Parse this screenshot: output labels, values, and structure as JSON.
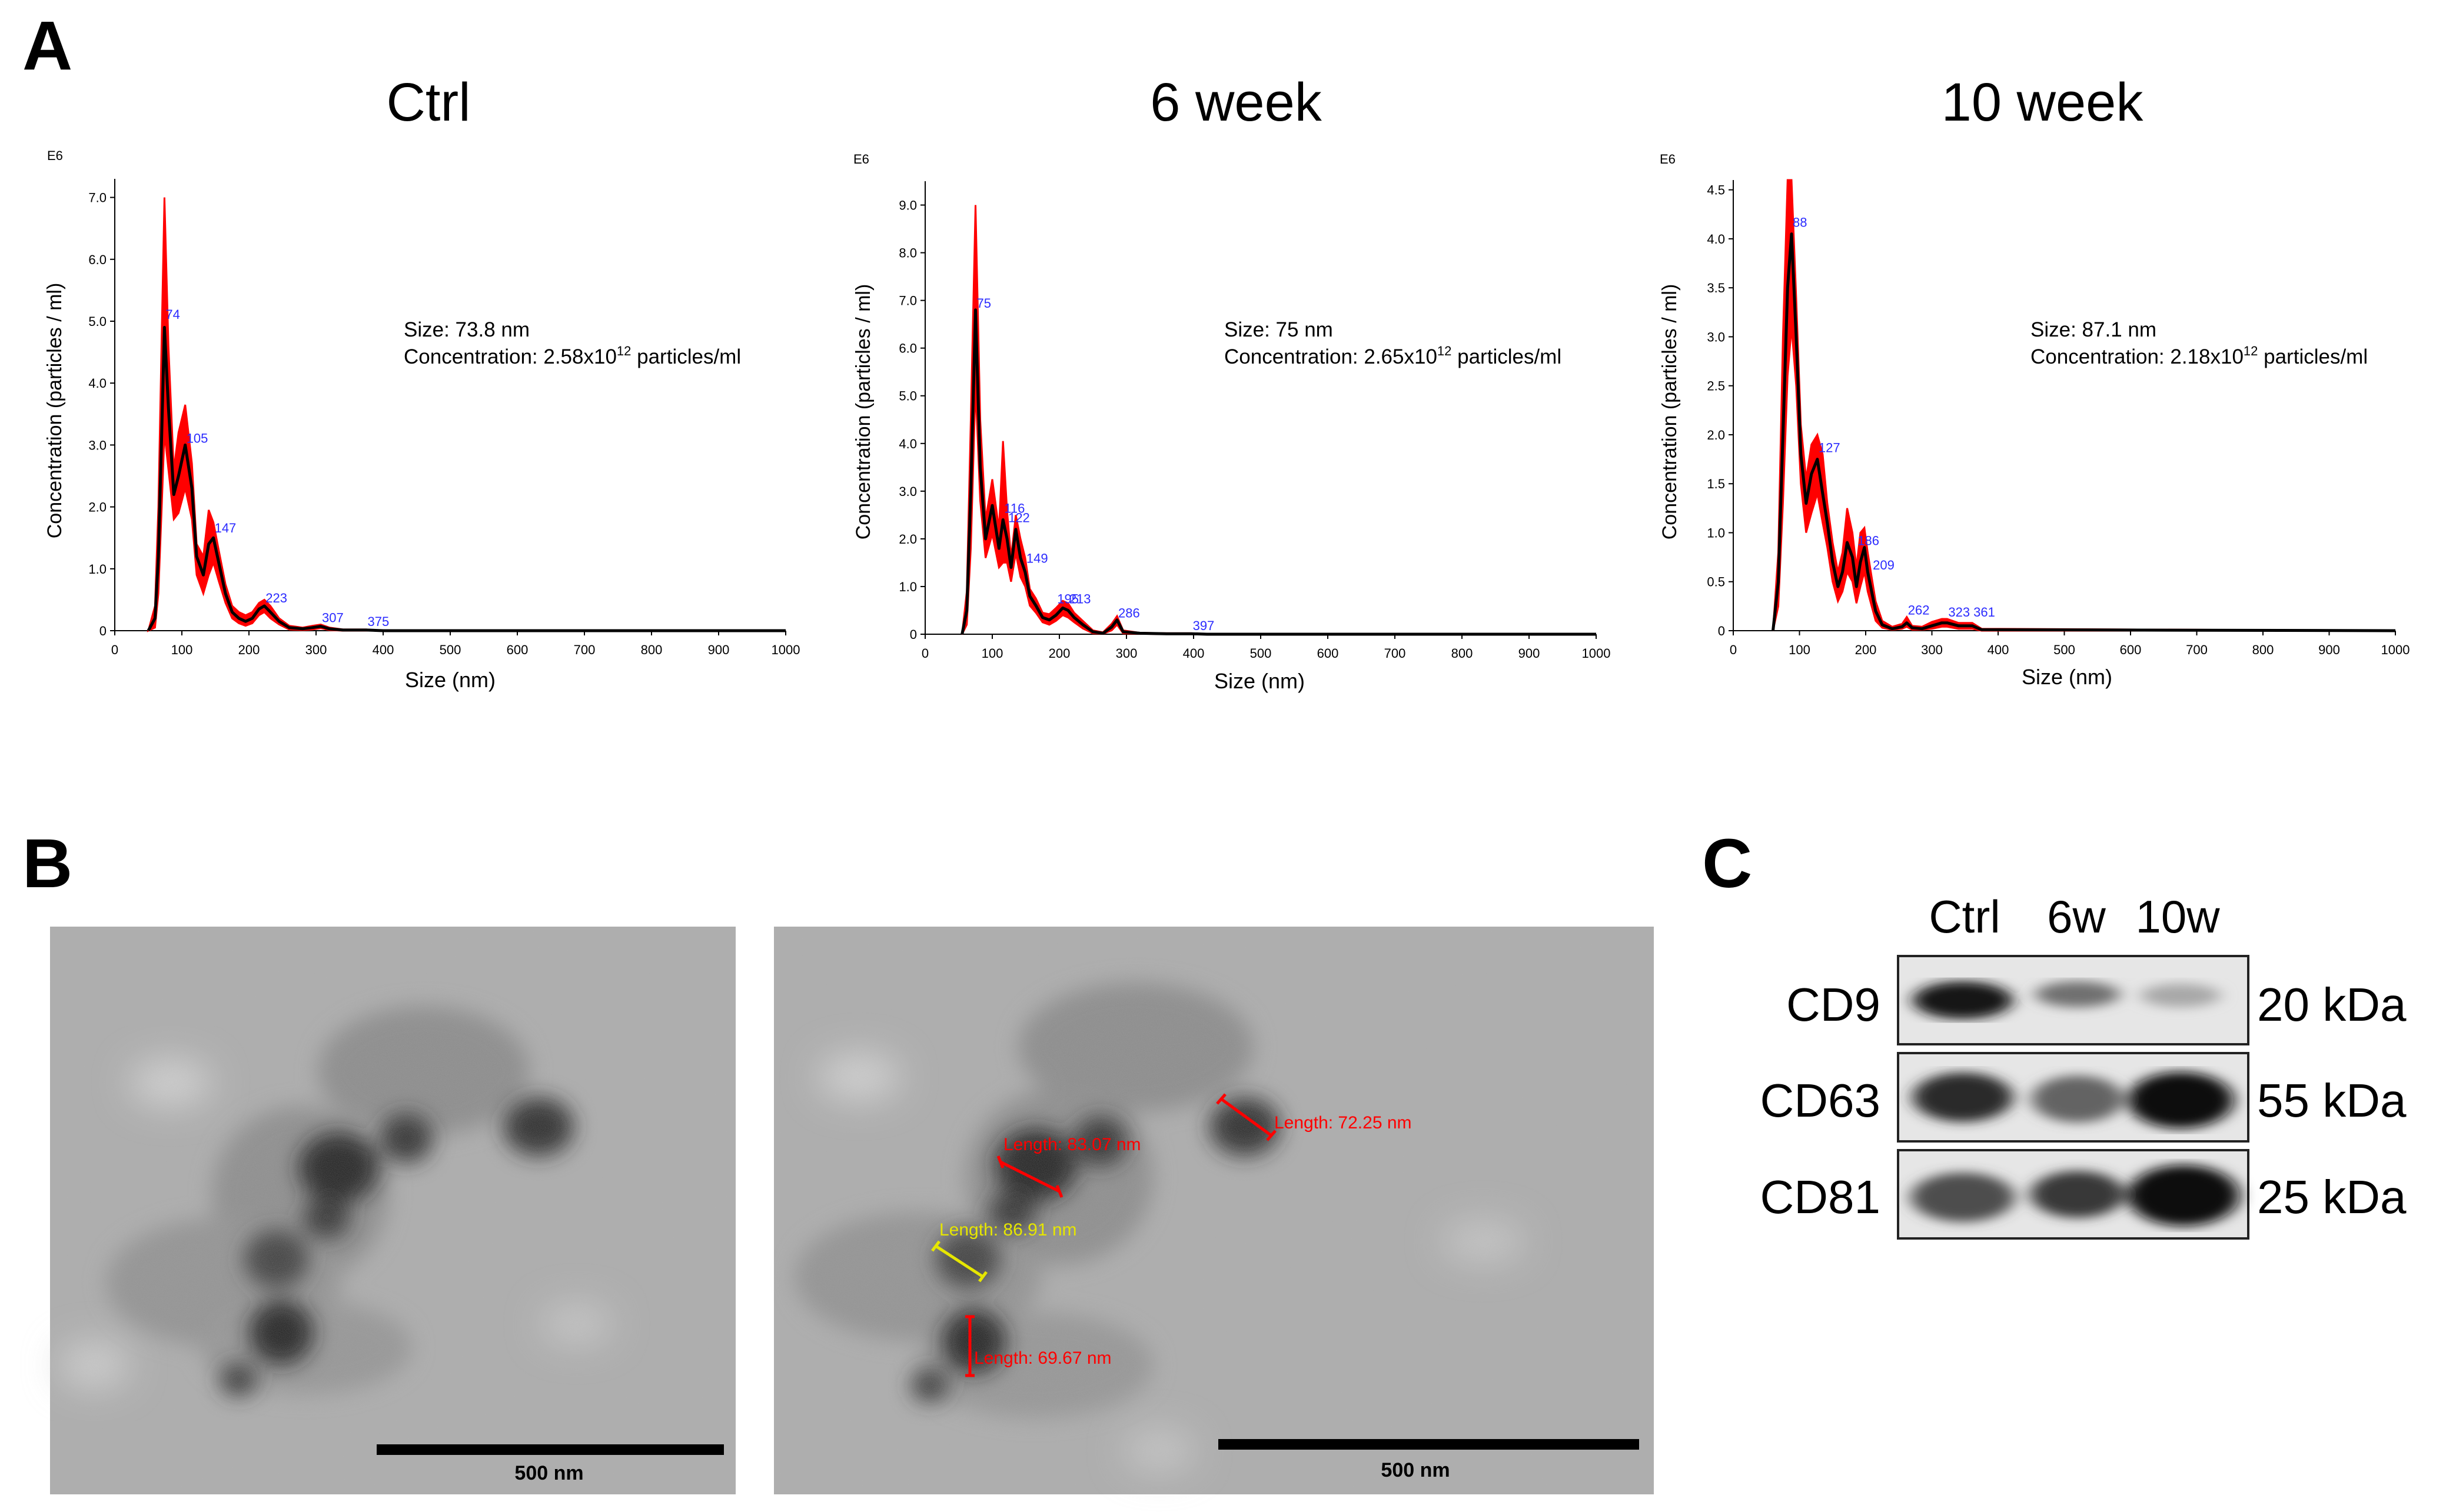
{
  "panels": {
    "a": "A",
    "b": "B",
    "c": "C"
  },
  "axis_common": {
    "e6": "E6",
    "ylabel": "Concentration (particles / ml)",
    "xlabel": "Size (nm)",
    "xticks": [
      "0",
      "100",
      "200",
      "300",
      "400",
      "500",
      "600",
      "700",
      "800",
      "900",
      "1000"
    ]
  },
  "chart_data": [
    {
      "type": "line",
      "title": "Ctrl",
      "xlabel": "Size (nm)",
      "ylabel": "Concentration (particles / ml)",
      "y_multiplier": "E6",
      "xlim": [
        0,
        1000
      ],
      "ylim": [
        0,
        7.3
      ],
      "yticks": [
        "0",
        "1.0",
        "2.0",
        "3.0",
        "4.0",
        "5.0",
        "6.0",
        "7.0"
      ],
      "annotation_size": "Size: 73.8 nm",
      "annotation_conc_pre": "Concentration: 2.58x10",
      "annotation_conc_exp": "12",
      "annotation_conc_post": " particles/ml",
      "series": [
        {
          "name": "mean",
          "color": "#000000",
          "x": [
            50,
            60,
            65,
            70,
            74,
            80,
            88,
            95,
            105,
            115,
            122,
            132,
            140,
            147,
            155,
            165,
            175,
            185,
            195,
            205,
            215,
            223,
            232,
            245,
            260,
            280,
            295,
            307,
            320,
            340,
            360,
            375,
            400,
            1000
          ],
          "y": [
            0,
            0.2,
            1.2,
            3.2,
            4.9,
            3.6,
            2.2,
            2.5,
            3.0,
            2.3,
            1.2,
            0.9,
            1.4,
            1.5,
            1.1,
            0.6,
            0.3,
            0.2,
            0.15,
            0.2,
            0.35,
            0.4,
            0.3,
            0.15,
            0.05,
            0.03,
            0.05,
            0.07,
            0.03,
            0.01,
            0.01,
            0.01,
            0,
            0
          ]
        },
        {
          "name": "upper",
          "color": "#ff0000",
          "x": [
            50,
            60,
            65,
            70,
            74,
            80,
            88,
            95,
            105,
            115,
            122,
            132,
            140,
            147,
            155,
            165,
            175,
            185,
            195,
            205,
            215,
            223,
            232,
            245,
            260,
            280,
            295,
            307,
            320,
            340,
            360,
            375,
            400,
            1000
          ],
          "y": [
            0,
            0.4,
            2.0,
            4.8,
            7.0,
            4.6,
            2.6,
            3.2,
            3.65,
            2.7,
            1.4,
            1.2,
            1.95,
            1.75,
            1.3,
            0.75,
            0.4,
            0.3,
            0.25,
            0.3,
            0.45,
            0.5,
            0.4,
            0.2,
            0.08,
            0.05,
            0.08,
            0.1,
            0.05,
            0.02,
            0.02,
            0.02,
            0,
            0
          ]
        },
        {
          "name": "lower",
          "color": "#ff0000",
          "x": [
            50,
            60,
            65,
            70,
            74,
            80,
            88,
            95,
            105,
            115,
            122,
            132,
            140,
            147,
            155,
            165,
            175,
            185,
            195,
            205,
            215,
            223,
            232,
            245,
            260,
            280,
            295,
            307,
            320,
            340,
            360,
            375,
            400,
            1000
          ],
          "y": [
            0,
            0.05,
            0.6,
            2.0,
            3.2,
            2.6,
            1.8,
            1.9,
            2.3,
            1.8,
            0.9,
            0.6,
            0.9,
            1.1,
            0.8,
            0.45,
            0.2,
            0.12,
            0.08,
            0.12,
            0.25,
            0.3,
            0.2,
            0.1,
            0.02,
            0.01,
            0.02,
            0.04,
            0.01,
            0,
            0,
            0,
            0,
            0
          ]
        }
      ],
      "peak_labels": [
        {
          "x": 74,
          "y": 5.0,
          "text": "74"
        },
        {
          "x": 105,
          "y": 3.0,
          "text": "105"
        },
        {
          "x": 147,
          "y": 1.55,
          "text": "147"
        },
        {
          "x": 223,
          "y": 0.42,
          "text": "223"
        },
        {
          "x": 307,
          "y": 0.1,
          "text": "307"
        },
        {
          "x": 375,
          "y": 0.04,
          "text": "375"
        }
      ]
    },
    {
      "type": "line",
      "title": "6 week",
      "xlabel": "Size (nm)",
      "ylabel": "Concentration (particles / ml)",
      "y_multiplier": "E6",
      "xlim": [
        0,
        1000
      ],
      "ylim": [
        0,
        9.5
      ],
      "yticks": [
        "0",
        "1.0",
        "2.0",
        "3.0",
        "4.0",
        "5.0",
        "6.0",
        "7.0",
        "8.0",
        "9.0"
      ],
      "annotation_size": "Size: 75 nm",
      "annotation_conc_pre": "Concentration: 2.65x10",
      "annotation_conc_exp": "12",
      "annotation_conc_post": " particles/ml",
      "series": [
        {
          "name": "mean",
          "color": "#000000",
          "x": [
            55,
            62,
            68,
            75,
            82,
            90,
            100,
            110,
            116,
            122,
            128,
            135,
            142,
            149,
            156,
            165,
            175,
            185,
            195,
            205,
            213,
            222,
            235,
            250,
            265,
            278,
            286,
            295,
            320,
            360,
            397,
            420,
            1000
          ],
          "y": [
            0,
            0.5,
            3.0,
            6.8,
            3.5,
            2.0,
            2.7,
            1.8,
            2.4,
            2.0,
            1.4,
            2.2,
            1.6,
            1.3,
            0.8,
            0.6,
            0.35,
            0.3,
            0.4,
            0.55,
            0.5,
            0.35,
            0.2,
            0.05,
            0.02,
            0.15,
            0.3,
            0.05,
            0.02,
            0.01,
            0.01,
            0,
            0
          ]
        },
        {
          "name": "upper",
          "color": "#ff0000",
          "x": [
            55,
            62,
            68,
            75,
            82,
            90,
            100,
            110,
            116,
            122,
            128,
            135,
            142,
            149,
            156,
            165,
            175,
            185,
            195,
            205,
            213,
            222,
            235,
            250,
            265,
            278,
            286,
            295,
            320,
            360,
            397,
            420,
            1000
          ],
          "y": [
            0,
            0.9,
            4.5,
            9.0,
            4.5,
            2.4,
            3.25,
            2.2,
            4.05,
            2.6,
            1.6,
            2.5,
            2.0,
            1.6,
            0.95,
            0.75,
            0.45,
            0.42,
            0.55,
            0.7,
            0.65,
            0.45,
            0.28,
            0.08,
            0.04,
            0.22,
            0.38,
            0.08,
            0.03,
            0.02,
            0.02,
            0,
            0
          ]
        },
        {
          "name": "lower",
          "color": "#ff0000",
          "x": [
            55,
            62,
            68,
            75,
            82,
            90,
            100,
            110,
            116,
            122,
            128,
            135,
            142,
            149,
            156,
            165,
            175,
            185,
            195,
            205,
            213,
            222,
            235,
            250,
            265,
            278,
            286,
            295,
            320,
            360,
            397,
            420,
            1000
          ],
          "y": [
            0,
            0.2,
            1.8,
            5.2,
            2.8,
            1.6,
            2.1,
            1.4,
            1.5,
            1.5,
            1.1,
            1.7,
            1.2,
            1.0,
            0.6,
            0.45,
            0.25,
            0.2,
            0.28,
            0.4,
            0.35,
            0.25,
            0.12,
            0.02,
            0.01,
            0.08,
            0.2,
            0.02,
            0.01,
            0,
            0,
            0,
            0
          ]
        }
      ],
      "peak_labels": [
        {
          "x": 75,
          "y": 6.8,
          "text": "75"
        },
        {
          "x": 116,
          "y": 2.5,
          "text": "116"
        },
        {
          "x": 122,
          "y": 2.3,
          "text": "122"
        },
        {
          "x": 149,
          "y": 1.45,
          "text": "149"
        },
        {
          "x": 195,
          "y": 0.6,
          "text": "195"
        },
        {
          "x": 213,
          "y": 0.6,
          "text": "213"
        },
        {
          "x": 286,
          "y": 0.3,
          "text": "286"
        },
        {
          "x": 397,
          "y": 0.04,
          "text": "397"
        }
      ]
    },
    {
      "type": "line",
      "title": "10 week",
      "xlabel": "Size (nm)",
      "ylabel": "Concentration (particles / ml)",
      "y_multiplier": "E6",
      "xlim": [
        0,
        1000
      ],
      "ylim": [
        0,
        4.6
      ],
      "yticks": [
        "0",
        "0.5",
        "1.0",
        "1.5",
        "2.0",
        "2.5",
        "3.0",
        "3.5",
        "4.0",
        "4.5"
      ],
      "annotation_size": "Size: 87.1 nm",
      "annotation_conc_pre": "Concentration: 2.18x10",
      "annotation_conc_exp": "12",
      "annotation_conc_post": " particles/ml",
      "series": [
        {
          "name": "mean",
          "color": "#000000",
          "x": [
            60,
            68,
            75,
            82,
            88,
            95,
            102,
            110,
            118,
            127,
            135,
            142,
            150,
            158,
            165,
            172,
            180,
            186,
            192,
            198,
            203,
            209,
            215,
            225,
            240,
            255,
            262,
            270,
            285,
            300,
            315,
            323,
            340,
            361,
            375,
            1000
          ],
          "y": [
            0,
            0.5,
            2.0,
            3.5,
            4.05,
            3.0,
            1.8,
            1.3,
            1.6,
            1.75,
            1.4,
            1.1,
            0.7,
            0.45,
            0.6,
            0.9,
            0.75,
            0.45,
            0.7,
            0.85,
            0.6,
            0.4,
            0.2,
            0.06,
            0.02,
            0.04,
            0.08,
            0.03,
            0.02,
            0.05,
            0.08,
            0.08,
            0.05,
            0.05,
            0.01,
            0
          ]
        },
        {
          "name": "upper",
          "color": "#ff0000",
          "x": [
            60,
            68,
            75,
            82,
            88,
            95,
            102,
            110,
            118,
            127,
            135,
            142,
            150,
            158,
            165,
            172,
            180,
            186,
            192,
            198,
            203,
            209,
            215,
            225,
            240,
            255,
            262,
            270,
            285,
            300,
            315,
            323,
            340,
            361,
            375,
            1000
          ],
          "y": [
            0,
            0.8,
            3.0,
            4.6,
            4.6,
            3.4,
            2.1,
            1.55,
            1.9,
            2.0,
            1.8,
            1.3,
            0.9,
            0.6,
            0.8,
            1.25,
            1.0,
            0.65,
            1.0,
            1.05,
            0.8,
            0.55,
            0.3,
            0.1,
            0.04,
            0.07,
            0.14,
            0.05,
            0.04,
            0.09,
            0.12,
            0.12,
            0.08,
            0.08,
            0.02,
            0
          ]
        },
        {
          "name": "lower",
          "color": "#ff0000",
          "x": [
            60,
            68,
            75,
            82,
            88,
            95,
            102,
            110,
            118,
            127,
            135,
            142,
            150,
            158,
            165,
            172,
            180,
            186,
            192,
            198,
            203,
            209,
            215,
            225,
            240,
            255,
            262,
            270,
            285,
            300,
            315,
            323,
            340,
            361,
            375,
            1000
          ],
          "y": [
            0,
            0.25,
            1.3,
            2.6,
            3.1,
            2.5,
            1.5,
            1.0,
            1.2,
            1.4,
            1.1,
            0.85,
            0.5,
            0.3,
            0.4,
            0.6,
            0.5,
            0.28,
            0.45,
            0.6,
            0.4,
            0.25,
            0.1,
            0.03,
            0.01,
            0.02,
            0.04,
            0.01,
            0.01,
            0.02,
            0.04,
            0.04,
            0.02,
            0.02,
            0,
            0
          ]
        }
      ],
      "peak_labels": [
        {
          "x": 88,
          "y": 4.1,
          "text": "88"
        },
        {
          "x": 127,
          "y": 1.8,
          "text": "127"
        },
        {
          "x": 186,
          "y": 0.85,
          "text": "186"
        },
        {
          "x": 209,
          "y": 0.6,
          "text": "209"
        },
        {
          "x": 262,
          "y": 0.14,
          "text": "262"
        },
        {
          "x": 323,
          "y": 0.12,
          "text": "323"
        },
        {
          "x": 361,
          "y": 0.12,
          "text": "361"
        }
      ]
    }
  ],
  "tem": {
    "scalebar_left": "500 nm",
    "scalebar_right": "500 nm",
    "measurements": [
      {
        "text": "Length: 83.07 nm",
        "color": "#ff0000"
      },
      {
        "text": "Length: 72.25 nm",
        "color": "#ff0000"
      },
      {
        "text": "Length: 86.91 nm",
        "color": "#e6e600"
      },
      {
        "text": "Length: 69.67 nm",
        "color": "#ff0000"
      }
    ]
  },
  "western": {
    "lanes": [
      "Ctrl",
      "6w",
      "10w"
    ],
    "proteins": [
      {
        "name": "CD9",
        "kda": "20 kDa",
        "intensity": [
          0.95,
          0.55,
          0.3
        ]
      },
      {
        "name": "CD63",
        "kda": "55 kDa",
        "intensity": [
          0.85,
          0.6,
          1.0
        ]
      },
      {
        "name": "CD81",
        "kda": "25 kDa",
        "intensity": [
          0.7,
          0.8,
          1.0
        ]
      }
    ]
  }
}
